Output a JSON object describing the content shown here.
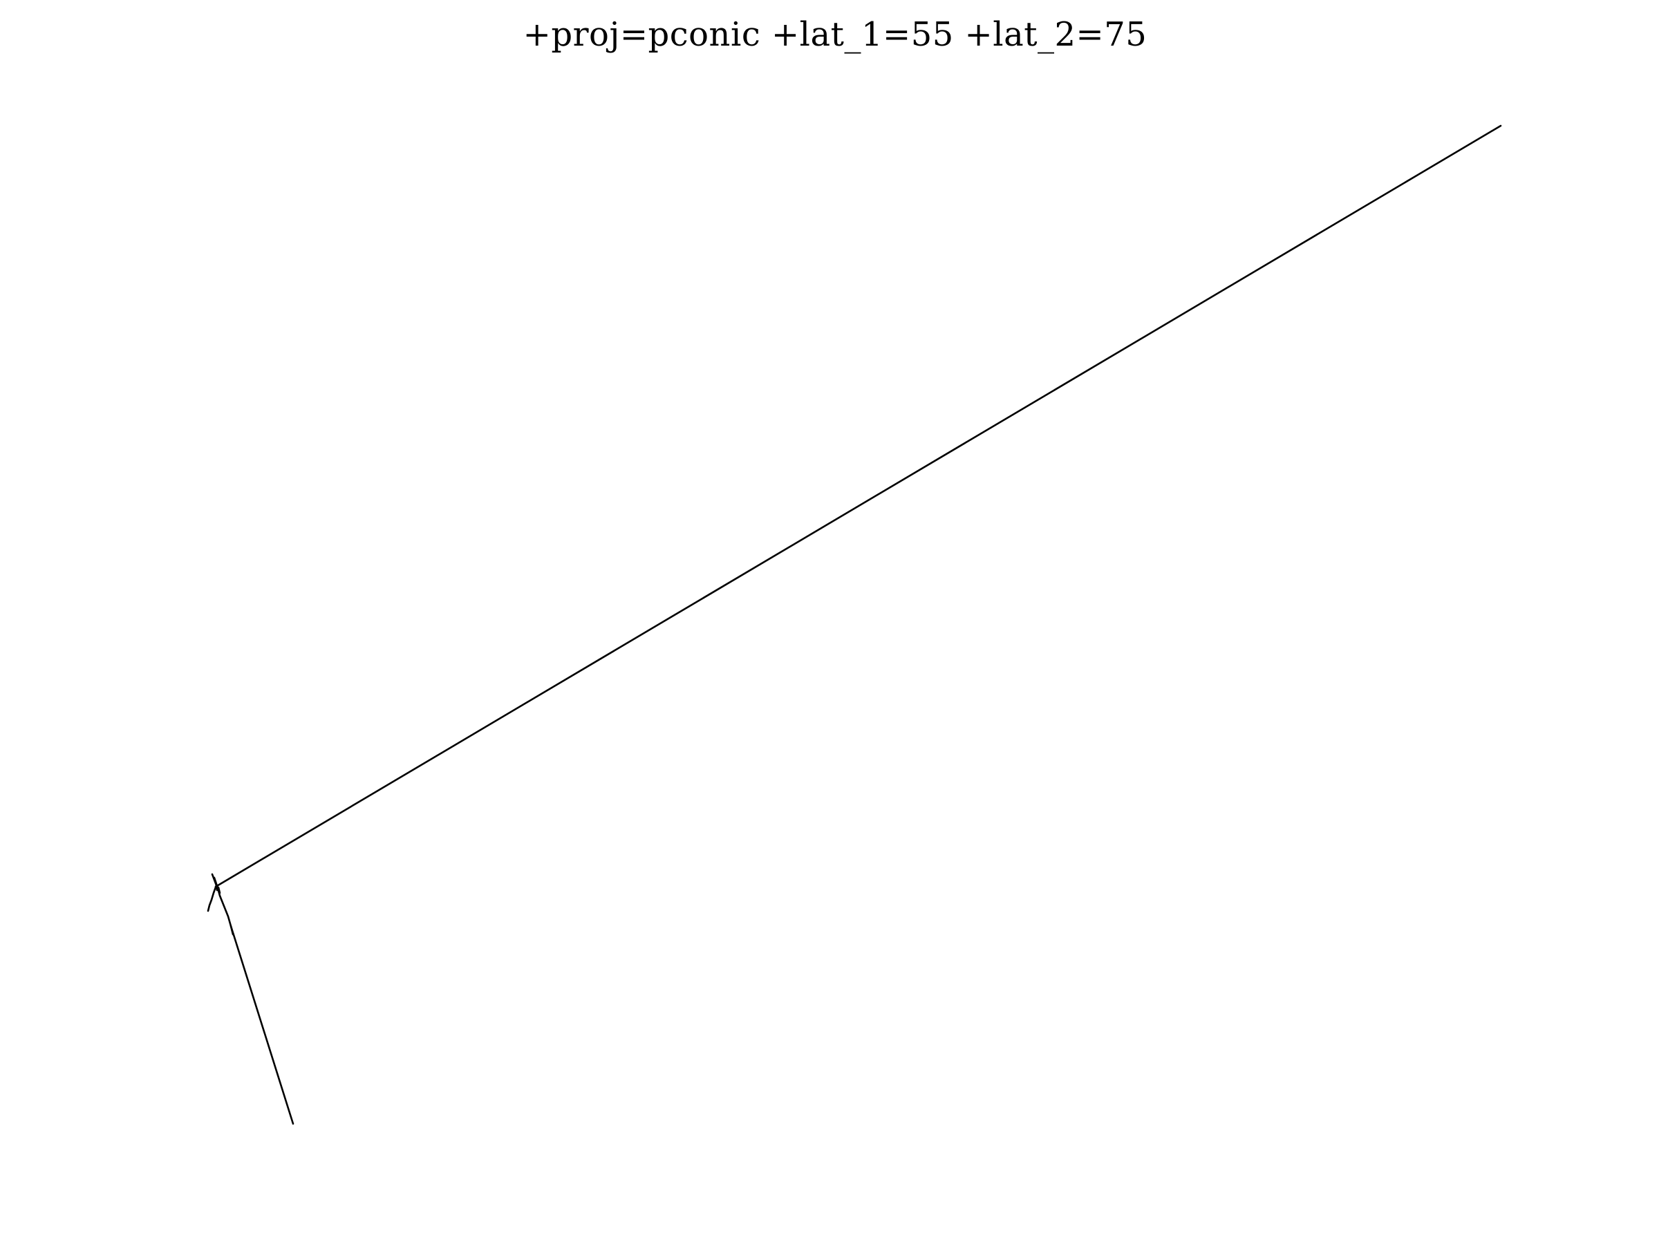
{
  "map": {
    "title": "+proj=pconic +lat_1=55 +lat_2=75",
    "projection": "pconic",
    "line_color": "#000000",
    "background_color": "#ffffff"
  }
}
